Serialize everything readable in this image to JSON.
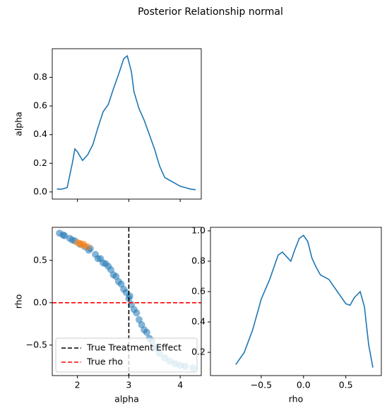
{
  "title": "Posterior Relationship normal",
  "chart_data": [
    {
      "type": "line",
      "ylabel": "alpha",
      "color": "#1f77b4",
      "x": [
        1.6,
        1.7,
        1.8,
        1.9,
        1.95,
        2.0,
        2.1,
        2.2,
        2.3,
        2.4,
        2.5,
        2.6,
        2.7,
        2.8,
        2.9,
        2.97,
        3.05,
        3.1,
        3.2,
        3.3,
        3.4,
        3.5,
        3.6,
        3.7,
        3.8,
        3.9,
        4.0,
        4.1,
        4.2,
        4.3
      ],
      "values": [
        0.02,
        0.02,
        0.03,
        0.2,
        0.3,
        0.28,
        0.22,
        0.26,
        0.33,
        0.45,
        0.56,
        0.61,
        0.72,
        0.82,
        0.93,
        0.95,
        0.84,
        0.7,
        0.58,
        0.5,
        0.4,
        0.3,
        0.18,
        0.1,
        0.08,
        0.06,
        0.04,
        0.03,
        0.02,
        0.015
      ],
      "xlim": [
        1.51,
        4.41
      ],
      "ylim": [
        -0.05,
        1.0
      ],
      "xticks": [
        2,
        3,
        4
      ],
      "show_xticklabels": false,
      "yticks": [
        {
          "value": 0,
          "label": "0.0"
        },
        0.2,
        0.4,
        0.6,
        0.8
      ]
    },
    {
      "type": "scatter",
      "xlabel": "alpha",
      "ylabel": "rho",
      "series": [
        {
          "color": "#1f77b4",
          "x": [
            1.65,
            1.72,
            1.75,
            1.85,
            1.9,
            1.95,
            2.05,
            2.15,
            2.22,
            2.25,
            2.35,
            2.4,
            2.45,
            2.5,
            2.55,
            2.6,
            2.65,
            2.7,
            2.75,
            2.8,
            2.85,
            2.9,
            2.95,
            3.0,
            3.02,
            3.05,
            3.1,
            3.15,
            3.2,
            3.25,
            3.3,
            3.35,
            3.4,
            3.45,
            3.5,
            3.55,
            3.6,
            3.7,
            3.8,
            3.9,
            4.0,
            4.1,
            4.25
          ],
          "values": [
            0.82,
            0.8,
            0.79,
            0.76,
            0.74,
            0.73,
            0.69,
            0.66,
            0.62,
            0.64,
            0.57,
            0.52,
            0.52,
            0.47,
            0.46,
            0.43,
            0.39,
            0.33,
            0.31,
            0.25,
            0.22,
            0.16,
            0.12,
            0.05,
            0.08,
            -0.02,
            -0.08,
            -0.12,
            -0.2,
            -0.26,
            -0.32,
            -0.35,
            -0.42,
            -0.45,
            -0.52,
            -0.54,
            -0.6,
            -0.65,
            -0.69,
            -0.72,
            -0.74,
            -0.75,
            -0.77
          ]
        },
        {
          "color": "#ff7f0e",
          "x": [
            2.0,
            2.05,
            2.1,
            2.12,
            2.2
          ],
          "values": [
            0.71,
            0.7,
            0.68,
            0.69,
            0.66
          ]
        }
      ],
      "vlines": [
        {
          "x": 3,
          "name": "True Treatment Effect",
          "color": "#000000"
        }
      ],
      "hlines": [
        {
          "y": 0,
          "name": "True rho",
          "color": "#ff0000"
        }
      ],
      "legend": "lower left",
      "xlim": [
        1.51,
        4.41
      ],
      "ylim": [
        -0.86,
        0.89
      ],
      "xticks": [
        2,
        3,
        4
      ],
      "yticks": [
        {
          "value": -0.5,
          "label": "−0.5"
        },
        {
          "value": 0,
          "label": "0.0"
        },
        0.5
      ]
    },
    {
      "type": "line",
      "xlabel": "rho",
      "color": "#1f77b4",
      "x": [
        -0.8,
        -0.7,
        -0.6,
        -0.5,
        -0.4,
        -0.3,
        -0.25,
        -0.2,
        -0.15,
        -0.1,
        -0.05,
        0.0,
        0.05,
        0.1,
        0.15,
        0.2,
        0.3,
        0.4,
        0.5,
        0.55,
        0.6,
        0.67,
        0.72,
        0.77,
        0.82
      ],
      "values": [
        0.12,
        0.2,
        0.35,
        0.55,
        0.68,
        0.84,
        0.86,
        0.83,
        0.8,
        0.88,
        0.95,
        0.97,
        0.93,
        0.82,
        0.76,
        0.71,
        0.68,
        0.6,
        0.52,
        0.51,
        0.56,
        0.6,
        0.5,
        0.25,
        0.1
      ],
      "xlim": [
        -1.1,
        0.92
      ],
      "ylim": [
        0.047,
        1.023
      ],
      "xticks": [
        {
          "value": -0.5,
          "label": "−0.5"
        },
        {
          "value": 0,
          "label": "0.0"
        },
        0.5
      ],
      "yticks": [
        0.2,
        0.4,
        0.6,
        0.8,
        {
          "value": 1,
          "label": "1.0"
        }
      ]
    }
  ]
}
